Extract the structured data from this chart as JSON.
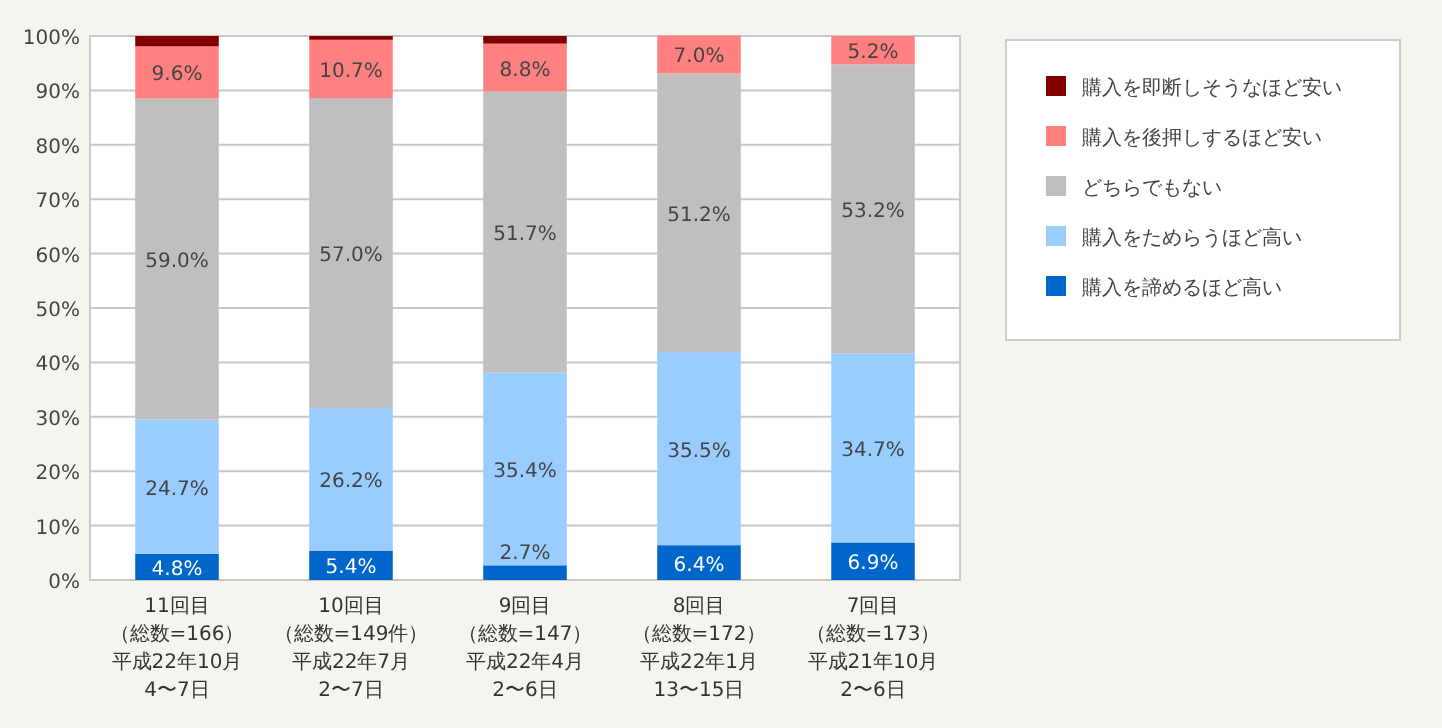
{
  "chart_data": {
    "type": "bar",
    "stacked": true,
    "categories": [
      "11回目（総数=166）平成22年10月4〜7日",
      "10回目（総数=149件）平成22年7月2〜7日",
      "9回目（総数=147）平成22年4月2〜6日",
      "8回目（総数=172）平成22年1月13〜15日",
      "7回目（総数=173）平成21年10月2〜6日"
    ],
    "series": [
      {
        "name": "購入を諦めるほど高い",
        "color": "#0066cc",
        "values": [
          4.8,
          5.4,
          2.7,
          6.4,
          6.9
        ],
        "value_labels": [
          "4.8%",
          "5.4%",
          "2.7%",
          "6.4%",
          "6.9%"
        ]
      },
      {
        "name": "購入をためらうほど高い",
        "color": "#99ccff",
        "values": [
          24.7,
          26.2,
          35.4,
          35.5,
          34.7
        ],
        "value_labels": [
          "24.7%",
          "26.2%",
          "35.4%",
          "35.5%",
          "34.7%"
        ]
      },
      {
        "name": "どちらでもない",
        "color": "#bfbfbf",
        "values": [
          59.0,
          57.0,
          51.7,
          51.2,
          53.2
        ],
        "value_labels": [
          "59.0%",
          "57.0%",
          "51.7%",
          "51.2%",
          "53.2%"
        ]
      },
      {
        "name": "購入を後押しするほど安い",
        "color": "#ff8080",
        "values": [
          9.6,
          10.7,
          8.8,
          7.0,
          5.2
        ],
        "value_labels": [
          "9.6%",
          "10.7%",
          "8.8%",
          "7.0%",
          "5.2%"
        ]
      },
      {
        "name": "購入を即断しそうなほど安い",
        "color": "#800000",
        "values": [
          1.9,
          0.7,
          1.4,
          null,
          null
        ]
      }
    ],
    "ylim": [
      0,
      100
    ],
    "yticks": [
      {
        "value": 0,
        "label": "0%"
      },
      {
        "value": 10,
        "label": "10%"
      },
      {
        "value": 20,
        "label": "20%"
      },
      {
        "value": 30,
        "label": "30%"
      },
      {
        "value": 40,
        "label": "40%"
      },
      {
        "value": 50,
        "label": "50%"
      },
      {
        "value": 60,
        "label": "60%"
      },
      {
        "value": 70,
        "label": "70%"
      },
      {
        "value": 80,
        "label": "80%"
      },
      {
        "value": 90,
        "label": "90%"
      },
      {
        "value": 100,
        "label": "100%"
      }
    ],
    "grid": "y",
    "legend": "right"
  }
}
